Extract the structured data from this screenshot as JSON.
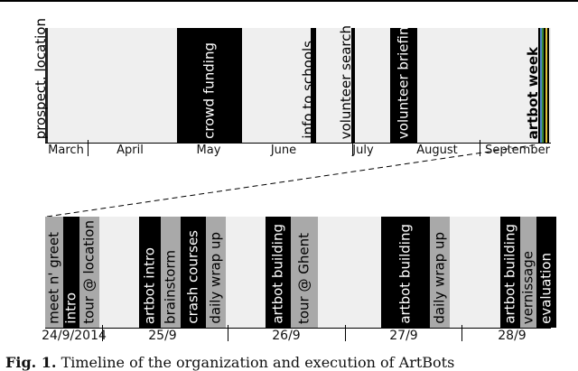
{
  "top_timeline": {
    "items": [
      {
        "label": "prospect. location",
        "style": "light"
      },
      {
        "label": "crowd funding",
        "style": "dark"
      },
      {
        "label": "info to schools",
        "style": "light"
      },
      {
        "label": "volunteer search",
        "style": "light"
      },
      {
        "label": "volunteer briefing",
        "style": "dark"
      },
      {
        "label": "artbot week",
        "style": "bold"
      }
    ],
    "months": [
      "March",
      "April",
      "May",
      "June",
      "July",
      "August",
      "September"
    ]
  },
  "bottom_timeline": {
    "items": [
      {
        "label": "meet n' greet",
        "style": "gray"
      },
      {
        "label": "intro",
        "style": "dark"
      },
      {
        "label": "tour @ location",
        "style": "gray"
      },
      {
        "label": "artbot intro",
        "style": "dark"
      },
      {
        "label": "brainstorm",
        "style": "gray"
      },
      {
        "label": "crash courses",
        "style": "dark"
      },
      {
        "label": "daily wrap up",
        "style": "gray"
      },
      {
        "label": "artbot building",
        "style": "dark"
      },
      {
        "label": "tour @ Ghent",
        "style": "gray"
      },
      {
        "label": "artbot building",
        "style": "dark"
      },
      {
        "label": "daily wrap up",
        "style": "gray"
      },
      {
        "label": "artbot building",
        "style": "dark"
      },
      {
        "label": "vernissage",
        "style": "gray"
      },
      {
        "label": "evaluation",
        "style": "dark"
      }
    ],
    "days": [
      "24/9/2014",
      "25/9",
      "26/9",
      "27/9",
      "28/9"
    ]
  },
  "caption": {
    "prefix": "Fig. 1.",
    "text": "Timeline of the organization and execution of ArtBots"
  }
}
